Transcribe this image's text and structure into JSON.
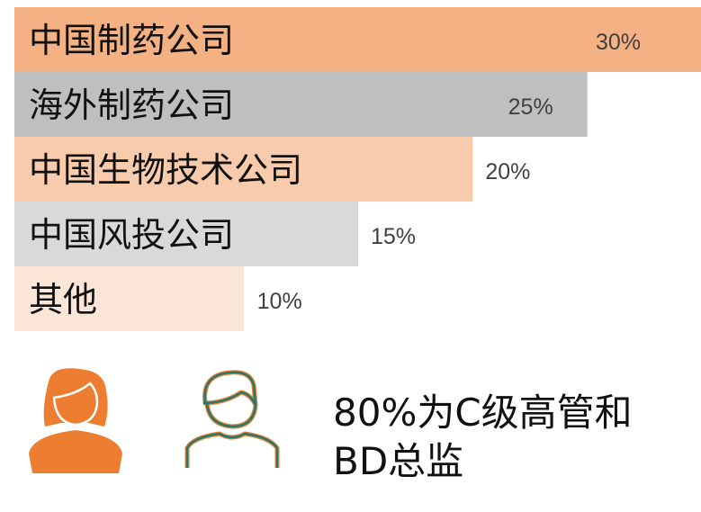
{
  "chart_data": {
    "type": "bar",
    "orientation": "horizontal",
    "categories": [
      "中国制药公司",
      "海外制药公司",
      "中国生物技术公司",
      "中国风投公司",
      "其他"
    ],
    "values": [
      30,
      25,
      20,
      15,
      10
    ],
    "value_labels": [
      "30%",
      "25%",
      "20%",
      "15%",
      "10%"
    ],
    "colors": [
      "#f4b183",
      "#bfbfbf",
      "#f8cbad",
      "#d9d9d9",
      "#fbe5d6"
    ],
    "unit": "%",
    "grid": false,
    "legend": "none"
  },
  "caption": {
    "line1": "80%为C级高管和",
    "line2": "BD总监"
  },
  "icons": {
    "woman": {
      "name": "woman-icon",
      "color": "#ed7d31"
    },
    "man": {
      "name": "man-outline-icon",
      "color": "#217a6b",
      "outline": "#ed7d31"
    }
  }
}
